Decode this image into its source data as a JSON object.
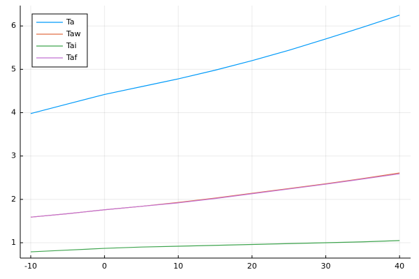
{
  "chart_data": {
    "type": "line",
    "x": [
      -10,
      -5,
      0,
      5,
      10,
      15,
      20,
      25,
      30,
      35,
      40
    ],
    "series": [
      {
        "name": "Ta",
        "color": "#009af9",
        "values": [
          3.98,
          4.2,
          4.42,
          4.6,
          4.78,
          4.98,
          5.2,
          5.44,
          5.7,
          5.97,
          6.25
        ]
      },
      {
        "name": "Taw",
        "color": "#e26f46",
        "values": [
          1.59,
          1.67,
          1.76,
          1.84,
          1.93,
          2.03,
          2.14,
          2.25,
          2.36,
          2.48,
          2.61
        ]
      },
      {
        "name": "Tai",
        "color": "#3ea44e",
        "values": [
          0.79,
          0.83,
          0.87,
          0.9,
          0.92,
          0.94,
          0.96,
          0.98,
          1.0,
          1.02,
          1.05
        ]
      },
      {
        "name": "Taf",
        "color": "#c271d2",
        "values": [
          1.59,
          1.67,
          1.76,
          1.84,
          1.92,
          2.02,
          2.13,
          2.24,
          2.35,
          2.47,
          2.59
        ]
      }
    ],
    "xlim": [
      -11.42,
      41.5
    ],
    "xticks": [
      -10,
      0,
      10,
      20,
      30,
      40
    ],
    "ylim": [
      0.646,
      6.47
    ],
    "yticks": [
      1,
      2,
      3,
      4,
      5,
      6
    ],
    "grid": true,
    "legend": "top-left"
  }
}
